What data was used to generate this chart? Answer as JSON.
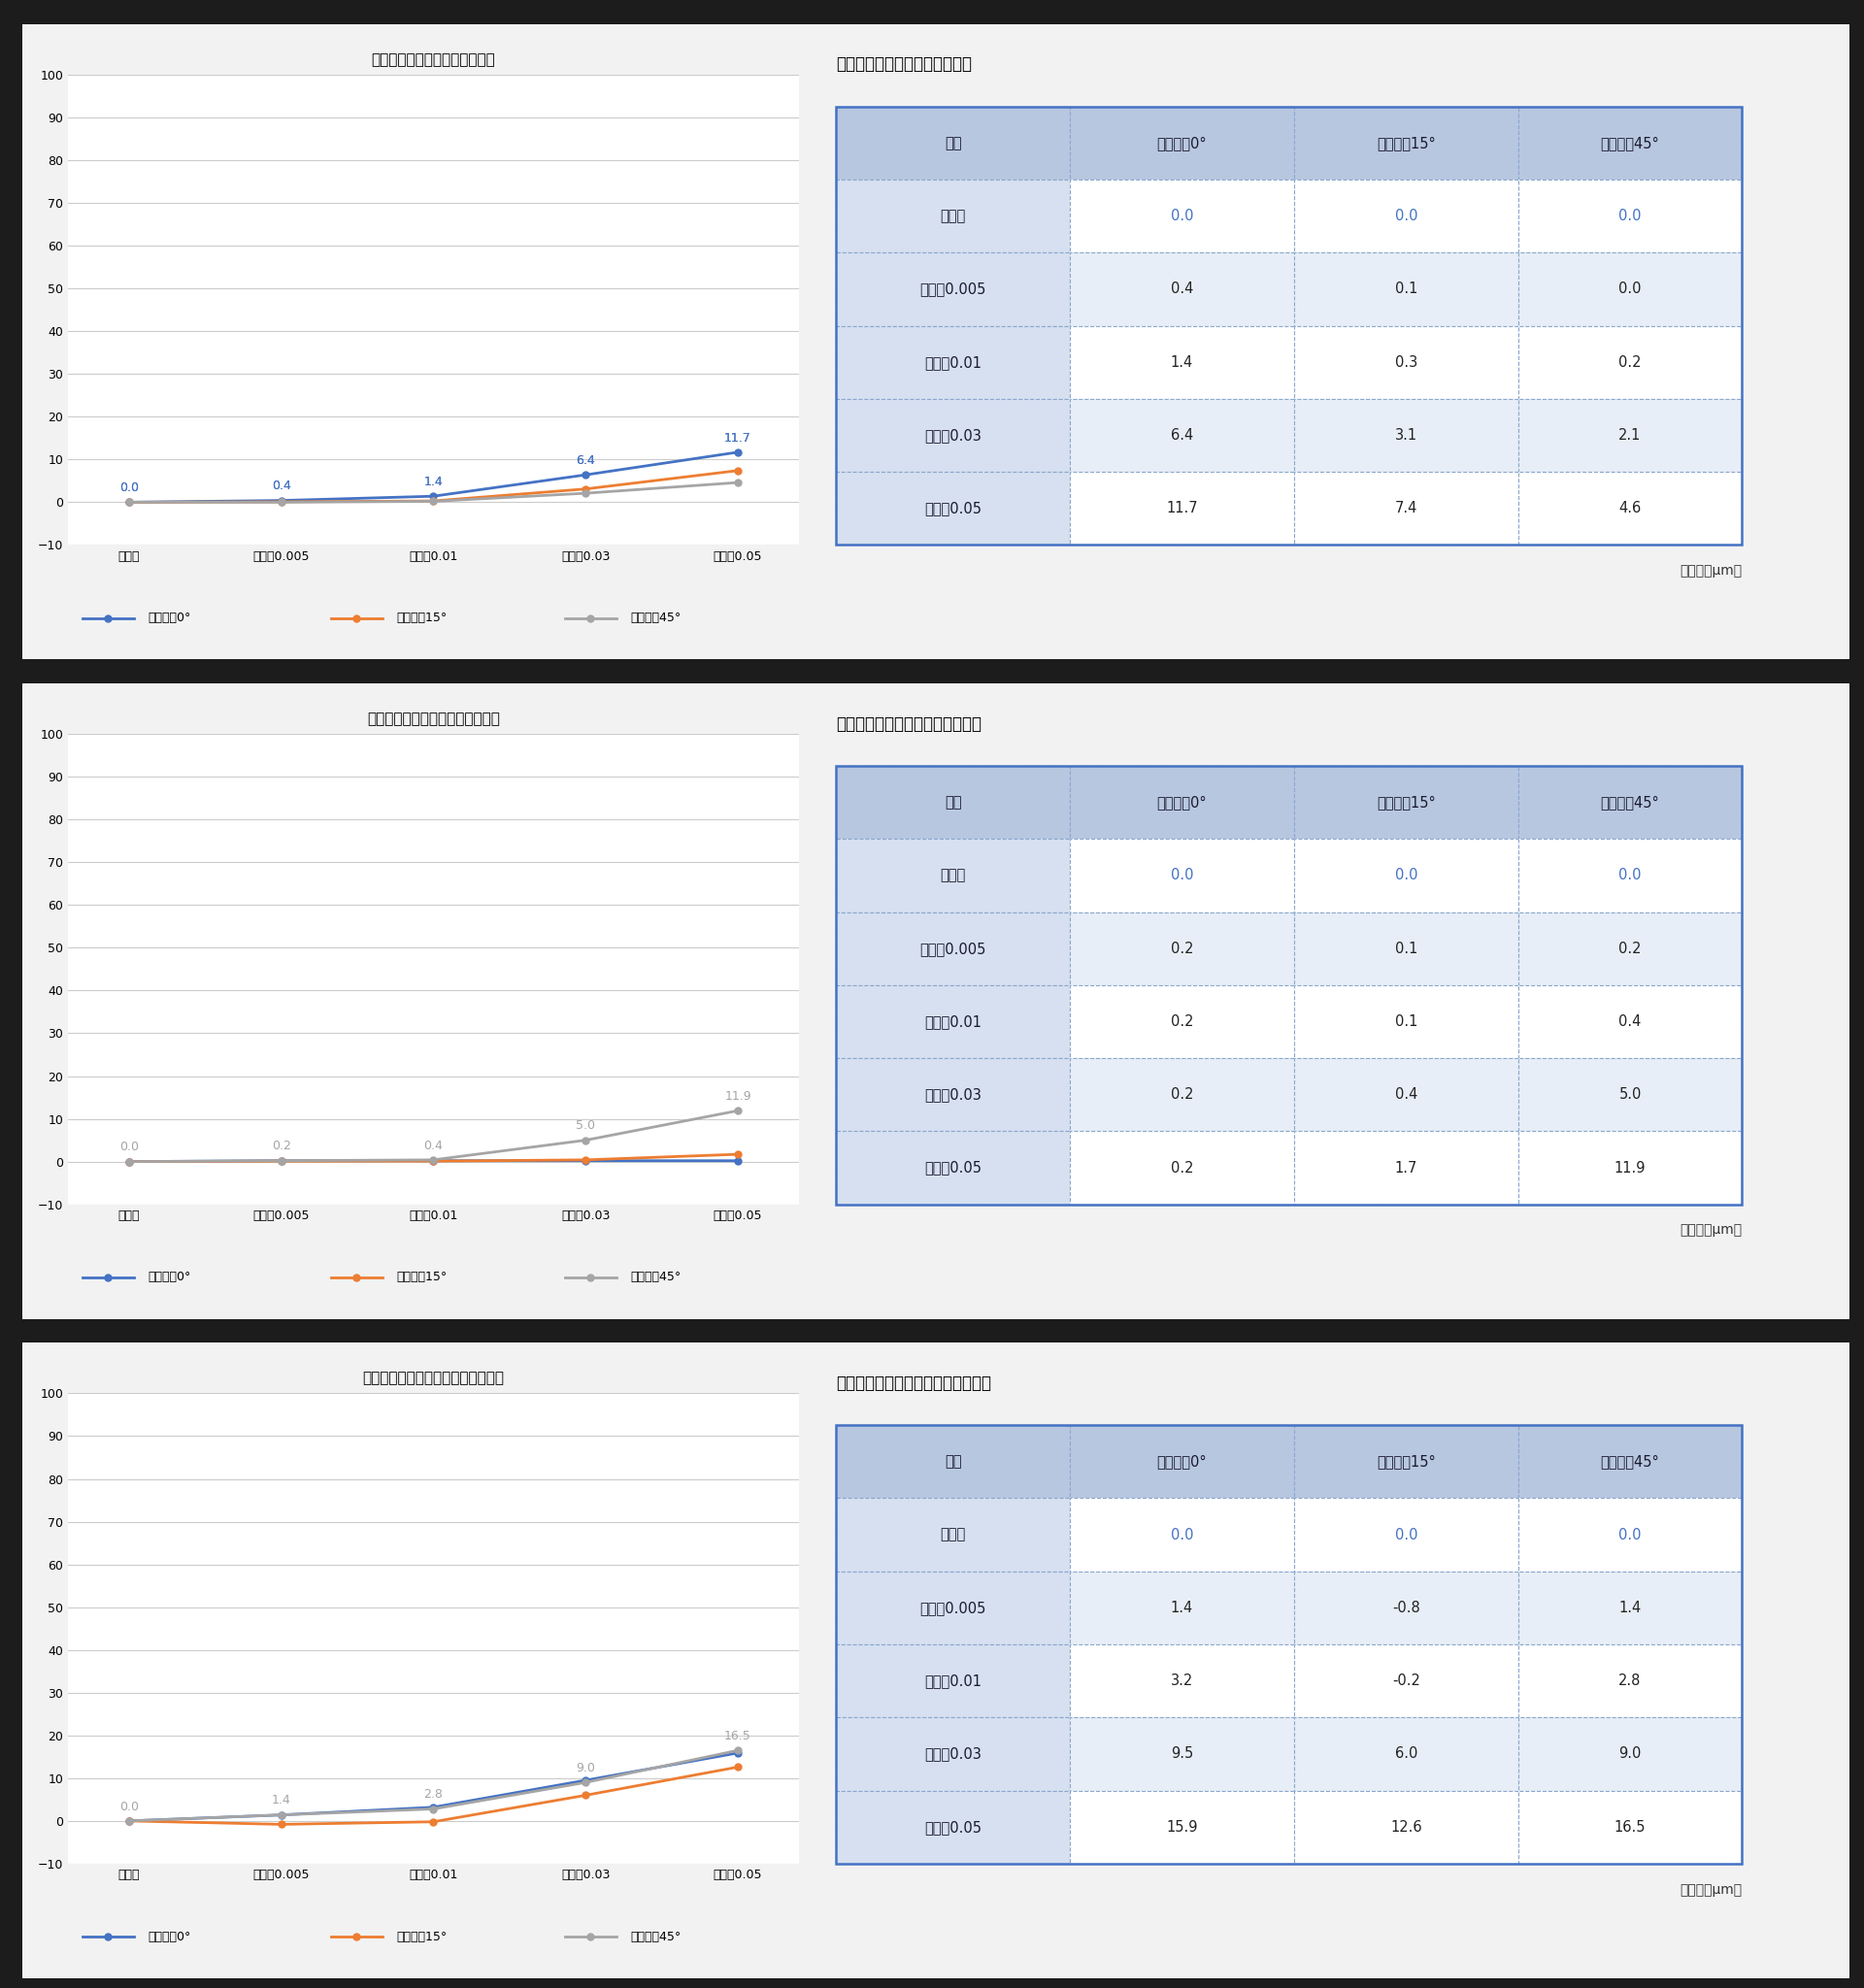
{
  "sections": [
    {
      "chart_title": "全歯形誤差（基準値との差分）",
      "table_title": "全歯形誤差（基準値との差分）",
      "categories": [
        "基準値",
        "偏心量0.005",
        "偏心量0.01",
        "偏心量0.03",
        "偏心量0.05"
      ],
      "series": {
        "ねじれ角0°": [
          0.0,
          0.4,
          1.4,
          6.4,
          11.7
        ],
        "ねじれ角15°": [
          0.0,
          0.1,
          0.3,
          3.1,
          7.4
        ],
        "ねじれ角45°": [
          0.0,
          0.0,
          0.2,
          2.1,
          4.6
        ]
      },
      "label_series": "ねじれ角0°",
      "table_data": [
        [
          "条件",
          "ねじれ角0°",
          "ねじれ角15°",
          "ねじれ角45°"
        ],
        [
          "基準値",
          "0.0",
          "0.0",
          "0.0"
        ],
        [
          "偏心量0.005",
          "0.4",
          "0.1",
          "0.0"
        ],
        [
          "偏心量0.01",
          "1.4",
          "0.3",
          "0.2"
        ],
        [
          "偏心量0.03",
          "6.4",
          "3.1",
          "2.1"
        ],
        [
          "偏心量0.05",
          "11.7",
          "7.4",
          "4.6"
        ]
      ]
    },
    {
      "chart_title": "全歯すじ誤差（基準値との差分）",
      "table_title": "全歯すじ誤差（基準値との差分）",
      "categories": [
        "基準値",
        "偏心量0.005",
        "偏心量0.01",
        "偏心量0.03",
        "偏心量0.05"
      ],
      "series": {
        "ねじれ角0°": [
          0.0,
          0.2,
          0.2,
          0.2,
          0.2
        ],
        "ねじれ角15°": [
          0.0,
          0.1,
          0.1,
          0.4,
          1.7
        ],
        "ねじれ角45°": [
          0.0,
          0.2,
          0.4,
          5.0,
          11.9
        ]
      },
      "label_series": "ねじれ角45°",
      "table_data": [
        [
          "条件",
          "ねじれ角0°",
          "ねじれ角15°",
          "ねじれ角45°"
        ],
        [
          "基準値",
          "0.0",
          "0.0",
          "0.0"
        ],
        [
          "偏心量0.005",
          "0.2",
          "0.1",
          "0.2"
        ],
        [
          "偏心量0.01",
          "0.2",
          "0.1",
          "0.4"
        ],
        [
          "偏心量0.03",
          "0.2",
          "0.4",
          "5.0"
        ],
        [
          "偏心量0.05",
          "0.2",
          "1.7",
          "11.9"
        ]
      ]
    },
    {
      "chart_title": "単一ピッチ誤差（基準値との差分）",
      "table_title": "単一ピッチ誤差（基準値との差分）",
      "categories": [
        "基準値",
        "偏心量0.005",
        "偏心量0.01",
        "偏心量0.03",
        "偏心量0.05"
      ],
      "series": {
        "ねじれ角0°": [
          0.0,
          1.4,
          3.2,
          9.5,
          15.9
        ],
        "ねじれ角15°": [
          0.0,
          -0.8,
          -0.2,
          6.0,
          12.6
        ],
        "ねじれ角45°": [
          0.0,
          1.4,
          2.8,
          9.0,
          16.5
        ]
      },
      "label_series": "ねじれ角45°",
      "table_data": [
        [
          "条件",
          "ねじれ角0°",
          "ねじれ角15°",
          "ねじれ角45°"
        ],
        [
          "基準値",
          "0.0",
          "0.0",
          "0.0"
        ],
        [
          "偏心量0.005",
          "1.4",
          "-0.8",
          "1.4"
        ],
        [
          "偏心量0.01",
          "3.2",
          "-0.2",
          "2.8"
        ],
        [
          "偏心量0.03",
          "9.5",
          "6.0",
          "9.0"
        ],
        [
          "偏心量0.05",
          "15.9",
          "12.6",
          "16.5"
        ]
      ]
    }
  ],
  "line_colors": {
    "ねじれ角0°": "#4472C4",
    "ねじれ角15°": "#ED7D31",
    "ねじれ角45°": "#A5A5A5"
  },
  "header_bg_color": "#B8C7E0",
  "row_bg_color_white": "#FFFFFF",
  "row_bg_color_blue": "#E8EEF7",
  "condition_col_bg": "#D6E0F0",
  "table_border_color": "#4472C4",
  "cell_border_color": "#8BA7CC",
  "panel_bg_color": "#F2F2F2",
  "outer_bg_color": "#1C1C1C",
  "unit_text": "（単位：μm）",
  "ylim": [
    -10.0,
    100.0
  ],
  "yticks": [
    100.0,
    90.0,
    80.0,
    70.0,
    60.0,
    50.0,
    40.0,
    30.0,
    20.0,
    10.0,
    0.0,
    -10.0
  ]
}
